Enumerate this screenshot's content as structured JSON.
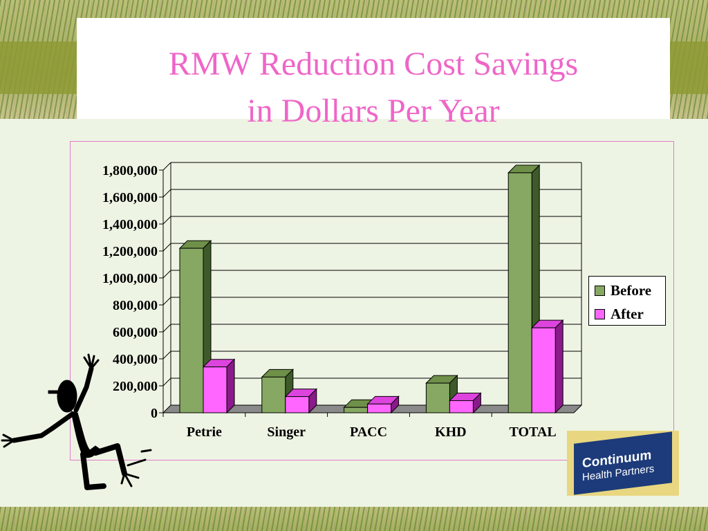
{
  "slide": {
    "title_line1": "RMW Reduction Cost Savings",
    "title_line2": "in Dollars Per Year"
  },
  "logo": {
    "line1": "Continuum",
    "line2": "Health Partners"
  },
  "colors": {
    "title": "#ee66c8",
    "before": "#86a862",
    "after": "#ff66ff",
    "background": "#eef4e4"
  },
  "chart_data": {
    "type": "bar",
    "categories": [
      "Petrie",
      "Singer",
      "PACC",
      "KHD",
      "TOTAL"
    ],
    "series": [
      {
        "name": "Before",
        "values": [
          1220000,
          265000,
          40000,
          220000,
          1780000
        ]
      },
      {
        "name": "After",
        "values": [
          340000,
          120000,
          65000,
          90000,
          630000
        ]
      }
    ],
    "title": "",
    "xlabel": "",
    "ylabel": "",
    "ylim": [
      0,
      1800000
    ],
    "yticks": [
      "0",
      "200,000",
      "400,000",
      "600,000",
      "800,000",
      "1,000,000",
      "1,200,000",
      "1,400,000",
      "1,600,000",
      "1,800,000"
    ],
    "grid": true,
    "legend_position": "right"
  }
}
